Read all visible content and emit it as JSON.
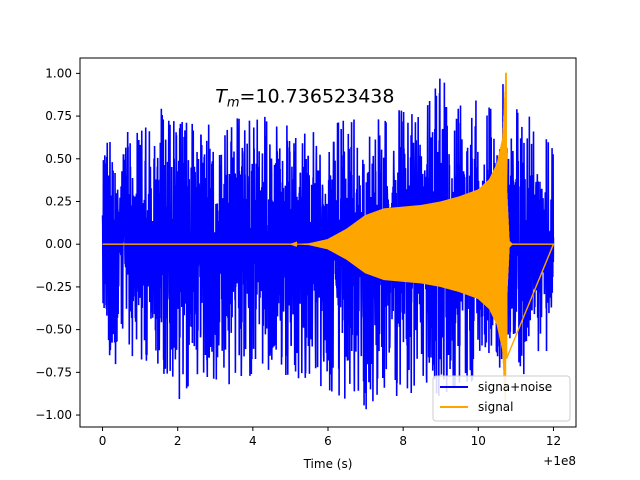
{
  "chart_data": {
    "type": "line",
    "xlabel": "Time (s)",
    "ylabel": "",
    "x_offset_label": "+1e8",
    "xlim": [
      -0.6,
      12.6
    ],
    "ylim": [
      -1.07,
      1.09
    ],
    "xticks": [
      0,
      2,
      4,
      6,
      8,
      10,
      12
    ],
    "yticks": [
      1.0,
      0.75,
      0.5,
      0.25,
      0.0,
      -0.25,
      -0.5,
      -0.75,
      -1.0
    ],
    "xtick_labels": [
      "0",
      "2",
      "4",
      "6",
      "8",
      "10",
      "12"
    ],
    "ytick_labels": [
      "1.00",
      "0.75",
      "0.50",
      "0.25",
      "0.00",
      "−0.25",
      "−0.50",
      "−0.75",
      "−1.00"
    ],
    "annotation": "T_m=10.736523438",
    "annotation_x": 3.0,
    "annotation_y": 0.83,
    "legend_position": "lower-right",
    "series": [
      {
        "name": "signa+noise",
        "color": "#0000ff",
        "description": "dense noisy oscillation; envelope in data units",
        "upper_envelope": [
          [
            0,
            0.55
          ],
          [
            0.2,
            0.62
          ],
          [
            0.5,
            0.66
          ],
          [
            1,
            0.65
          ],
          [
            1.5,
            0.82
          ],
          [
            2,
            0.72
          ],
          [
            2.5,
            0.7
          ],
          [
            3,
            0.7
          ],
          [
            3.5,
            0.74
          ],
          [
            4,
            0.72
          ],
          [
            4.5,
            0.76
          ],
          [
            5,
            0.68
          ],
          [
            5.5,
            0.7
          ],
          [
            6,
            0.69
          ],
          [
            6.5,
            0.73
          ],
          [
            7,
            0.73
          ],
          [
            7.5,
            0.8
          ],
          [
            8,
            0.78
          ],
          [
            8.5,
            0.74
          ],
          [
            9,
            0.98
          ],
          [
            9.5,
            0.85
          ],
          [
            10,
            0.84
          ],
          [
            10.5,
            0.78
          ],
          [
            10.7,
            0.98
          ],
          [
            10.75,
            0.62
          ],
          [
            11,
            0.82
          ],
          [
            11.5,
            0.72
          ],
          [
            12,
            0.55
          ]
        ],
        "lower_envelope": [
          [
            0,
            -0.6
          ],
          [
            0.2,
            -0.78
          ],
          [
            0.5,
            -0.62
          ],
          [
            1,
            -0.68
          ],
          [
            1.5,
            -0.7
          ],
          [
            2,
            -0.92
          ],
          [
            2.5,
            -0.76
          ],
          [
            3,
            -0.79
          ],
          [
            3.5,
            -0.83
          ],
          [
            4,
            -0.76
          ],
          [
            4.5,
            -0.74
          ],
          [
            5,
            -0.78
          ],
          [
            5.5,
            -0.8
          ],
          [
            6,
            -0.85
          ],
          [
            6.5,
            -0.91
          ],
          [
            7,
            -0.97
          ],
          [
            7.5,
            -0.84
          ],
          [
            8,
            -0.95
          ],
          [
            8.5,
            -0.78
          ],
          [
            9,
            -0.9
          ],
          [
            9.5,
            -0.81
          ],
          [
            10,
            -0.8
          ],
          [
            10.5,
            -0.78
          ],
          [
            10.7,
            -0.66
          ],
          [
            10.8,
            -0.79
          ],
          [
            11,
            -0.79
          ],
          [
            11.5,
            -0.72
          ],
          [
            12,
            -0.57
          ]
        ]
      },
      {
        "name": "signal",
        "color": "#ffa500",
        "description": "chirp signal amplitude envelope (symmetric about 0)",
        "envelope": [
          [
            0,
            0.0
          ],
          [
            5.0,
            0.0
          ],
          [
            5.5,
            0.005
          ],
          [
            6.0,
            0.03
          ],
          [
            6.5,
            0.09
          ],
          [
            7.0,
            0.17
          ],
          [
            7.5,
            0.21
          ],
          [
            8.0,
            0.22
          ],
          [
            8.5,
            0.23
          ],
          [
            9.0,
            0.25
          ],
          [
            9.5,
            0.28
          ],
          [
            10.0,
            0.32
          ],
          [
            10.3,
            0.38
          ],
          [
            10.5,
            0.47
          ],
          [
            10.65,
            0.62
          ],
          [
            10.736,
            1.0
          ],
          [
            10.76,
            0.3
          ],
          [
            10.82,
            0.02
          ],
          [
            10.9,
            0.0
          ],
          [
            12,
            0.0
          ]
        ],
        "peak": [
          10.736,
          1.0
        ],
        "trough": [
          10.75,
          -0.67
        ]
      }
    ]
  }
}
